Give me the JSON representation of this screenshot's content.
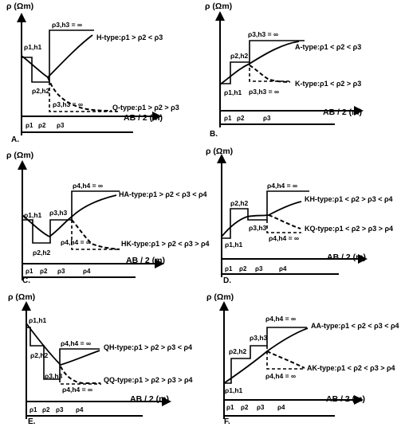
{
  "axis_label_y": "ρ (Ωm)",
  "axis_label_x": "AB / 2 (m)",
  "panels": [
    {
      "id": "A",
      "letter": "A.",
      "layers": [
        "ρ1",
        "ρ2",
        "ρ3"
      ],
      "labels": {
        "l1": "ρ1,h1",
        "l2": "ρ2,h2",
        "l3a": "ρ3,h3 = ∞",
        "l3b": "ρ3,h3 = ∞"
      },
      "types": {
        "upper": "H-type:ρ1 > ρ2 < ρ3",
        "lower": "Q-type:ρ1 > ρ2 > ρ3"
      }
    },
    {
      "id": "B",
      "letter": "B.",
      "layers": [
        "ρ1",
        "ρ2",
        "ρ3"
      ],
      "labels": {
        "l1": "ρ1,h1",
        "l2": "ρ2,h2",
        "l3a": "ρ3,h3 = ∞",
        "l3b": "ρ3,h3 = ∞"
      },
      "types": {
        "upper": "A-type:ρ1 < ρ2 < ρ3",
        "lower": "K-type:ρ1 < ρ2 > ρ3"
      }
    },
    {
      "id": "C",
      "letter": "C.",
      "layers": [
        "ρ1",
        "ρ2",
        "ρ3",
        "ρ4"
      ],
      "labels": {
        "l1": "ρ1,h1",
        "l2": "ρ2,h2",
        "l3": "ρ3,h3",
        "l4a": "ρ4,h4 = ∞",
        "l4b": "ρ4,h4 = ∞"
      },
      "types": {
        "upper": "HA-type:ρ1 > ρ2 < ρ3 < ρ4",
        "lower": "HK-type:ρ1 > ρ2 < ρ3 > ρ4"
      }
    },
    {
      "id": "D",
      "letter": "D.",
      "layers": [
        "ρ1",
        "ρ2",
        "ρ3",
        "ρ4"
      ],
      "labels": {
        "l1": "ρ1,h1",
        "l2": "ρ2,h2",
        "l3": "ρ3,h3",
        "l4a": "ρ4,h4 = ∞",
        "l4b": "ρ4,h4 = ∞"
      },
      "types": {
        "upper": "KH-type:ρ1 < ρ2 > ρ3 < ρ4",
        "lower": "KQ-type:ρ1 < ρ2 > ρ3 > ρ4"
      }
    },
    {
      "id": "E",
      "letter": "E.",
      "layers": [
        "ρ1",
        "ρ2",
        "ρ3",
        "ρ4"
      ],
      "labels": {
        "l1": "ρ1,h1",
        "l2": "ρ2,h2",
        "l3": "ρ3,h3",
        "l4a": "ρ4,h4 = ∞",
        "l4b": "ρ4,h4 = ∞"
      },
      "types": {
        "upper": "QH-type:ρ1 > ρ2 > ρ3 < ρ4",
        "lower": "QQ-type:ρ1 > ρ2 > ρ3 > ρ4"
      }
    },
    {
      "id": "F",
      "letter": "F.",
      "layers": [
        "ρ1",
        "ρ2",
        "ρ3",
        "ρ4"
      ],
      "labels": {
        "l1": "ρ1,h1",
        "l2": "ρ2,h2",
        "l3": "ρ3,h3",
        "l4a": "ρ4,h4 = ∞",
        "l4b": "ρ4,h4 = ∞"
      },
      "types": {
        "upper": "AA-type:ρ1 < ρ2 < ρ3 < ρ4",
        "lower": "AK-type:ρ1 < ρ2 < ρ3 > ρ4"
      }
    }
  ]
}
